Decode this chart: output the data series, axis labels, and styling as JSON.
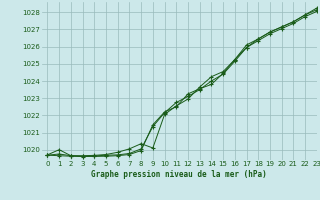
{
  "title": "Graphe pression niveau de la mer (hPa)",
  "background_color": "#cce8ea",
  "grid_color": "#99bbbb",
  "line_color": "#1a5c1a",
  "xlim": [
    -0.5,
    23
  ],
  "ylim": [
    1019.4,
    1028.6
  ],
  "yticks": [
    1020,
    1021,
    1022,
    1023,
    1024,
    1025,
    1026,
    1027,
    1028
  ],
  "xticks": [
    0,
    1,
    2,
    3,
    4,
    5,
    6,
    7,
    8,
    9,
    10,
    11,
    12,
    13,
    14,
    15,
    16,
    17,
    18,
    19,
    20,
    21,
    22,
    23
  ],
  "xtick_labels": [
    "0",
    "1",
    "2",
    "3",
    "4",
    "5",
    "6",
    "7",
    "8",
    "9",
    "10",
    "11",
    "12",
    "13",
    "14",
    "15",
    "16",
    "17",
    "18",
    "19",
    "20",
    "21",
    "22",
    "23"
  ],
  "line1_x": [
    0,
    1,
    2,
    3,
    4,
    5,
    6,
    7,
    8,
    9,
    10,
    11,
    12,
    13,
    14,
    15,
    16,
    17,
    18,
    19,
    20,
    21,
    22,
    23
  ],
  "line1_y": [
    1019.7,
    1020.0,
    1019.65,
    1019.62,
    1019.63,
    1019.68,
    1019.7,
    1019.78,
    1020.05,
    1021.35,
    1022.15,
    1022.75,
    1023.1,
    1023.5,
    1024.0,
    1024.4,
    1025.15,
    1025.95,
    1026.35,
    1026.75,
    1027.05,
    1027.35,
    1027.75,
    1028.05
  ],
  "line2_x": [
    0,
    1,
    2,
    3,
    4,
    5,
    6,
    7,
    8,
    9,
    10,
    11,
    12,
    13,
    14,
    15,
    16,
    17,
    18,
    19,
    20,
    21,
    22,
    23
  ],
  "line2_y": [
    1019.68,
    1019.65,
    1019.62,
    1019.6,
    1019.61,
    1019.62,
    1019.65,
    1019.72,
    1019.95,
    1021.45,
    1022.2,
    1022.5,
    1023.25,
    1023.55,
    1023.8,
    1024.45,
    1025.25,
    1026.1,
    1026.45,
    1026.85,
    1027.15,
    1027.45,
    1027.85,
    1028.15
  ],
  "line3_x": [
    0,
    1,
    2,
    3,
    4,
    5,
    6,
    7,
    8,
    9,
    10,
    11,
    12,
    13,
    14,
    15,
    16,
    17,
    18,
    19,
    20,
    21,
    22,
    23
  ],
  "line3_y": [
    1019.68,
    1019.75,
    1019.65,
    1019.65,
    1019.67,
    1019.72,
    1019.85,
    1020.05,
    1020.35,
    1020.1,
    1022.05,
    1022.55,
    1022.95,
    1023.65,
    1024.25,
    1024.55,
    1025.25,
    1025.95,
    1026.45,
    1026.85,
    1027.15,
    1027.45,
    1027.85,
    1028.25
  ]
}
